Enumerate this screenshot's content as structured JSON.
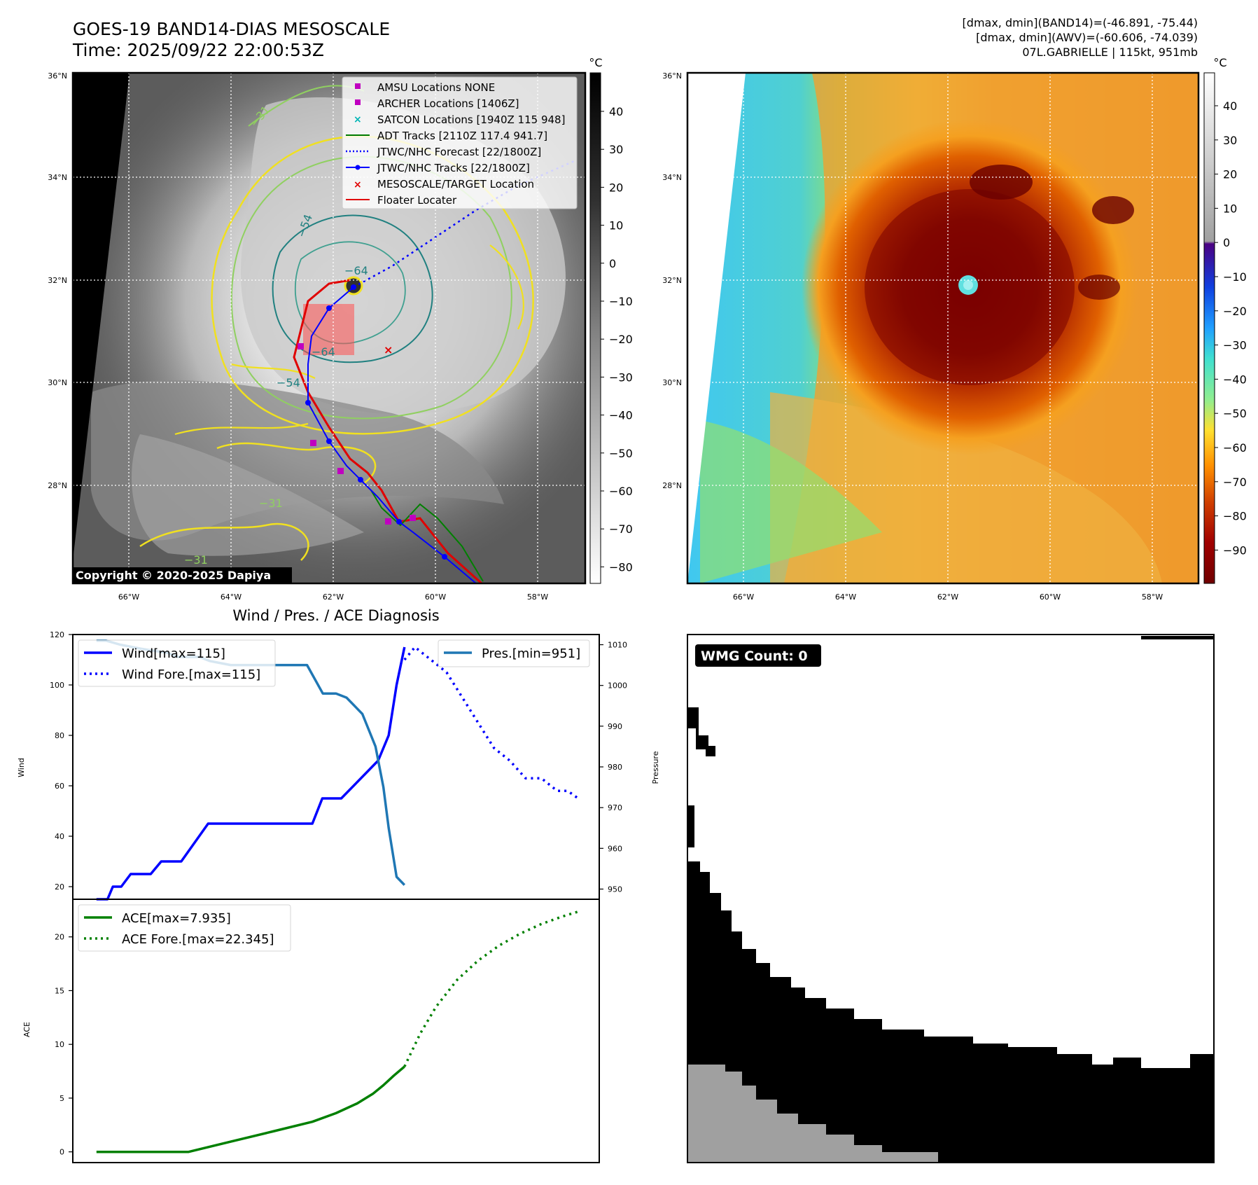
{
  "header": {
    "title_line1": "GOES-19 BAND14-DIAS MESOSCALE",
    "title_line2": "Time: 2025/09/22 22:00:53Z",
    "info_line1": "[dmax, dmin](BAND14)=(-46.891, -75.44)",
    "info_line2": "[dmax, dmin](AWV)=(-60.606, -74.039)",
    "info_line3": "07L.GABRIELLE | 115kt, 951mb"
  },
  "map_left": {
    "copyright": "Copyright © 2020-2025 Dapiya",
    "lat_labels": [
      "36°N",
      "34°N",
      "32°N",
      "30°N",
      "28°N"
    ],
    "lon_labels": [
      "66°W",
      "64°W",
      "62°W",
      "60°W",
      "58°W"
    ],
    "colorbar_unit": "°C",
    "colorbar_ticks": [
      "40",
      "30",
      "20",
      "10",
      "0",
      "−10",
      "−20",
      "−30",
      "−40",
      "−50",
      "−60",
      "−70",
      "−80"
    ],
    "contour_labels": [
      "−54",
      "−64",
      "−54",
      "−31",
      "−31",
      "−31",
      "−64"
    ],
    "legend": [
      {
        "label": "AMSU Locations NONE",
        "marker": "square",
        "color": "#c000c0"
      },
      {
        "label": "ARCHER Locations [1406Z]",
        "marker": "square",
        "color": "#c000c0"
      },
      {
        "label": "SATCON Locations [1940Z 115 948]",
        "marker": "x",
        "color": "#00b5b5"
      },
      {
        "label": "ADT Tracks [2110Z 117.4 941.7]",
        "marker": "line",
        "color": "#007a00"
      },
      {
        "label": "JTWC/NHC Forecast [22/1800Z]",
        "marker": "dotted",
        "color": "#0000ff"
      },
      {
        "label": "JTWC/NHC Tracks [22/1800Z]",
        "marker": "line-dot",
        "color": "#0000ff"
      },
      {
        "label": "MESOSCALE/TARGET Location",
        "marker": "x",
        "color": "#e00000"
      },
      {
        "label": "Floater Locater",
        "marker": "line",
        "color": "#e00000"
      }
    ]
  },
  "map_right": {
    "lat_labels": [
      "36°N",
      "34°N",
      "32°N",
      "30°N",
      "28°N"
    ],
    "lon_labels": [
      "66°W",
      "64°W",
      "62°W",
      "60°W",
      "58°W"
    ],
    "colorbar_unit": "°C",
    "colorbar_ticks": [
      "40",
      "30",
      "20",
      "10",
      "0",
      "−10",
      "−20",
      "−30",
      "−40",
      "−50",
      "−60",
      "−70",
      "−80",
      "−90"
    ]
  },
  "diagnosis": {
    "title": "Wind / Pres. / ACE Diagnosis",
    "wind_ylabel": "Wind",
    "pres_ylabel": "Pressure",
    "ace_ylabel": "ACE",
    "legend_wind": "Wind[max=115]",
    "legend_wind_fore": "Wind Fore.[max=115]",
    "legend_pres": "Pres.[min=951]",
    "legend_ace": "ACE[max=7.935]",
    "legend_ace_fore": "ACE Fore.[max=22.345]"
  },
  "wmg": {
    "badge": "WMG Count: 0"
  },
  "chart_data": [
    {
      "type": "line",
      "title": "Wind / Pres. / ACE Diagnosis",
      "ylabel": "Wind",
      "ylim": [
        15,
        120
      ],
      "yticks": [
        20,
        40,
        60,
        80,
        100,
        120
      ],
      "y2label": "Pressure",
      "y2lim": [
        947.5,
        1012.5
      ],
      "y2ticks": [
        950,
        960,
        970,
        980,
        990,
        1000,
        1010
      ],
      "xlim": [
        0,
        1
      ],
      "series": [
        {
          "name": "Wind[max=115]",
          "style": "solid",
          "color": "#0000ff",
          "axis": "left",
          "x": [
            0.045,
            0.066,
            0.076,
            0.092,
            0.11,
            0.148,
            0.168,
            0.206,
            0.257,
            0.455,
            0.474,
            0.51,
            0.58,
            0.6,
            0.615,
            0.63
          ],
          "y": [
            15,
            15,
            20,
            20,
            25,
            25,
            30,
            30,
            45,
            45,
            55,
            55,
            70,
            80,
            100,
            115
          ]
        },
        {
          "name": "Wind Fore.[max=115]",
          "style": "dotted",
          "color": "#0000ff",
          "axis": "left",
          "x": [
            0.63,
            0.65,
            0.68,
            0.71,
            0.74,
            0.77,
            0.8,
            0.83,
            0.86,
            0.89,
            0.92,
            0.94,
            0.96
          ],
          "y": [
            110,
            115,
            110,
            105,
            95,
            85,
            75,
            70,
            63,
            63,
            58,
            58,
            55
          ]
        },
        {
          "name": "Pres.[min=951]",
          "style": "solid",
          "color": "#1f77b4",
          "axis": "right",
          "x": [
            0.045,
            0.063,
            0.09,
            0.13,
            0.18,
            0.2,
            0.24,
            0.26,
            0.3,
            0.35,
            0.4,
            0.445,
            0.475,
            0.5,
            0.52,
            0.55,
            0.575,
            0.59,
            0.6,
            0.615,
            0.63
          ],
          "y": [
            1011,
            1011,
            1010,
            1009,
            1008,
            1007,
            1007,
            1006,
            1005,
            1005,
            1005,
            1005,
            998,
            998,
            997,
            993,
            985,
            975,
            965,
            953,
            951
          ]
        }
      ]
    },
    {
      "type": "line",
      "ylabel": "ACE",
      "ylim": [
        -1.0,
        23.5
      ],
      "yticks": [
        0,
        5,
        10,
        15,
        20
      ],
      "xlim": [
        0,
        1
      ],
      "series": [
        {
          "name": "ACE[max=7.935]",
          "style": "solid",
          "color": "#008000",
          "x": [
            0.045,
            0.22,
            0.3,
            0.38,
            0.455,
            0.5,
            0.54,
            0.57,
            0.59,
            0.61,
            0.63
          ],
          "y": [
            0,
            0,
            0.95,
            1.9,
            2.8,
            3.6,
            4.5,
            5.4,
            6.2,
            7.1,
            7.935
          ]
        },
        {
          "name": "ACE Fore.[max=22.345]",
          "style": "dotted",
          "color": "#008000",
          "x": [
            0.63,
            0.66,
            0.69,
            0.73,
            0.77,
            0.81,
            0.85,
            0.89,
            0.93,
            0.96
          ],
          "y": [
            7.935,
            11.0,
            13.5,
            16.0,
            17.8,
            19.2,
            20.3,
            21.2,
            21.9,
            22.345
          ]
        }
      ]
    }
  ]
}
